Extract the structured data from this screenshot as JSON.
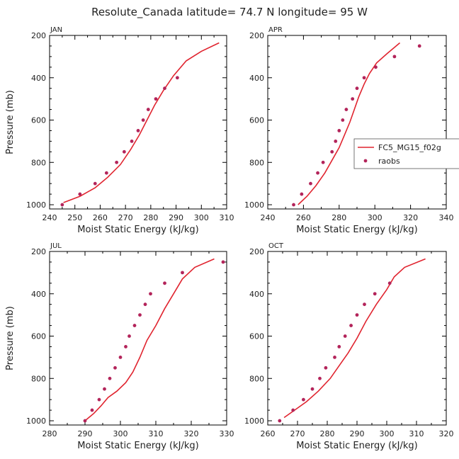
{
  "suptitle": "Resolute_Canada   latitude= 74.7 N longitude= 95 W",
  "colors": {
    "model": "#e0242f",
    "obs": "#b3245a",
    "axis": "#000000"
  },
  "legend": {
    "model_label": "FC5_MG15_f02g",
    "obs_label": "raobs",
    "placement": "right-middle of APR panel"
  },
  "chart_data": [
    {
      "type": "scatter",
      "title": "JAN",
      "xlabel": "Moist Static Energy (kJ/kg)",
      "ylabel": "Pressure (mb)",
      "xlim": [
        240,
        310
      ],
      "ylim": [
        1020,
        200
      ],
      "xticks": [
        240,
        250,
        260,
        270,
        280,
        290,
        300,
        310
      ],
      "yticks": [
        200,
        400,
        600,
        800,
        1000
      ],
      "series": [
        {
          "name": "FC5_MG15_f02g",
          "kind": "line",
          "points": [
            [
              245.5,
              990
            ],
            [
              252,
              960
            ],
            [
              258,
              920
            ],
            [
              263,
              870
            ],
            [
              268,
              810
            ],
            [
              272,
              740
            ],
            [
              275.5,
              670
            ],
            [
              278.5,
              600
            ],
            [
              281.5,
              530
            ],
            [
              285,
              460
            ],
            [
              289,
              390
            ],
            [
              294,
              320
            ],
            [
              300,
              275
            ],
            [
              307,
              235
            ]
          ]
        },
        {
          "name": "raobs",
          "kind": "scatter",
          "points": [
            [
              245,
              1000
            ],
            [
              252,
              950
            ],
            [
              258,
              900
            ],
            [
              262.5,
              850
            ],
            [
              266.5,
              800
            ],
            [
              269.5,
              750
            ],
            [
              272.5,
              700
            ],
            [
              275,
              650
            ],
            [
              277,
              600
            ],
            [
              279,
              550
            ],
            [
              282,
              500
            ],
            [
              285.5,
              450
            ],
            [
              290.5,
              400
            ]
          ]
        }
      ]
    },
    {
      "type": "scatter",
      "title": "APR",
      "xlabel": "Moist Static Energy (kJ/kg)",
      "ylabel": "",
      "xlim": [
        240,
        340
      ],
      "ylim": [
        1020,
        200
      ],
      "xticks": [
        240,
        260,
        280,
        300,
        320,
        340
      ],
      "yticks": [
        200,
        400,
        600,
        800,
        1000
      ],
      "series": [
        {
          "name": "FC5_MG15_f02g",
          "kind": "line",
          "points": [
            [
              257,
              1000
            ],
            [
              262,
              960
            ],
            [
              267,
              910
            ],
            [
              272,
              850
            ],
            [
              276,
              790
            ],
            [
              280,
              730
            ],
            [
              283,
              670
            ],
            [
              286,
              610
            ],
            [
              288.5,
              550
            ],
            [
              291,
              490
            ],
            [
              294,
              430
            ],
            [
              297,
              380
            ],
            [
              301,
              330
            ],
            [
              307,
              285
            ],
            [
              314,
              235
            ]
          ]
        },
        {
          "name": "raobs",
          "kind": "scatter",
          "points": [
            [
              254.5,
              1000
            ],
            [
              259,
              950
            ],
            [
              264,
              900
            ],
            [
              268,
              850
            ],
            [
              271,
              800
            ],
            [
              276,
              750
            ],
            [
              278,
              700
            ],
            [
              280,
              650
            ],
            [
              282,
              600
            ],
            [
              284,
              550
            ],
            [
              287.5,
              500
            ],
            [
              290,
              450
            ],
            [
              294,
              400
            ],
            [
              300.5,
              350
            ],
            [
              311,
              300
            ],
            [
              325,
              250
            ]
          ]
        }
      ]
    },
    {
      "type": "scatter",
      "title": "JUL",
      "xlabel": "Moist Static Energy (kJ/kg)",
      "ylabel": "Pressure (mb)",
      "xlim": [
        280,
        330
      ],
      "ylim": [
        1020,
        200
      ],
      "xticks": [
        280,
        290,
        300,
        310,
        320,
        330
      ],
      "yticks": [
        200,
        400,
        600,
        800,
        1000
      ],
      "series": [
        {
          "name": "FC5_MG15_f02g",
          "kind": "line",
          "points": [
            [
              290,
              1000
            ],
            [
              292.5,
              965
            ],
            [
              294.5,
              930
            ],
            [
              296.5,
              890
            ],
            [
              299,
              860
            ],
            [
              301.5,
              820
            ],
            [
              303.5,
              770
            ],
            [
              305.5,
              700
            ],
            [
              307.5,
              620
            ],
            [
              310,
              550
            ],
            [
              312.5,
              470
            ],
            [
              315,
              400
            ],
            [
              317.5,
              330
            ],
            [
              321,
              275
            ],
            [
              326.5,
              235
            ]
          ]
        },
        {
          "name": "raobs",
          "kind": "scatter",
          "points": [
            [
              290,
              1000
            ],
            [
              292,
              950
            ],
            [
              294,
              900
            ],
            [
              295.5,
              850
            ],
            [
              297,
              800
            ],
            [
              298.5,
              750
            ],
            [
              300,
              700
            ],
            [
              301.5,
              650
            ],
            [
              302.5,
              600
            ],
            [
              304,
              550
            ],
            [
              305.5,
              500
            ],
            [
              307,
              450
            ],
            [
              308.5,
              400
            ],
            [
              312.5,
              350
            ],
            [
              317.5,
              300
            ],
            [
              329,
              250
            ]
          ]
        }
      ]
    },
    {
      "type": "scatter",
      "title": "OCT",
      "xlabel": "Moist Static Energy (kJ/kg)",
      "ylabel": "",
      "xlim": [
        260,
        320
      ],
      "ylim": [
        1020,
        200
      ],
      "xticks": [
        260,
        270,
        280,
        290,
        300,
        310,
        320
      ],
      "yticks": [
        200,
        400,
        600,
        800,
        1000
      ],
      "series": [
        {
          "name": "FC5_MG15_f02g",
          "kind": "line",
          "points": [
            [
              265.5,
              985
            ],
            [
              269,
              950
            ],
            [
              273,
              910
            ],
            [
              277,
              860
            ],
            [
              281,
              800
            ],
            [
              284,
              740
            ],
            [
              287,
              680
            ],
            [
              290,
              610
            ],
            [
              293,
              530
            ],
            [
              296.5,
              450
            ],
            [
              300,
              380
            ],
            [
              302.5,
              320
            ],
            [
              306,
              275
            ],
            [
              313,
              235
            ]
          ]
        },
        {
          "name": "raobs",
          "kind": "scatter",
          "points": [
            [
              264,
              1000
            ],
            [
              268.5,
              950
            ],
            [
              272,
              900
            ],
            [
              275,
              850
            ],
            [
              277.5,
              800
            ],
            [
              279.5,
              750
            ],
            [
              282.5,
              700
            ],
            [
              284,
              650
            ],
            [
              286,
              600
            ],
            [
              288,
              550
            ],
            [
              290,
              500
            ],
            [
              292.5,
              450
            ],
            [
              296,
              400
            ],
            [
              301,
              350
            ]
          ]
        }
      ]
    }
  ]
}
